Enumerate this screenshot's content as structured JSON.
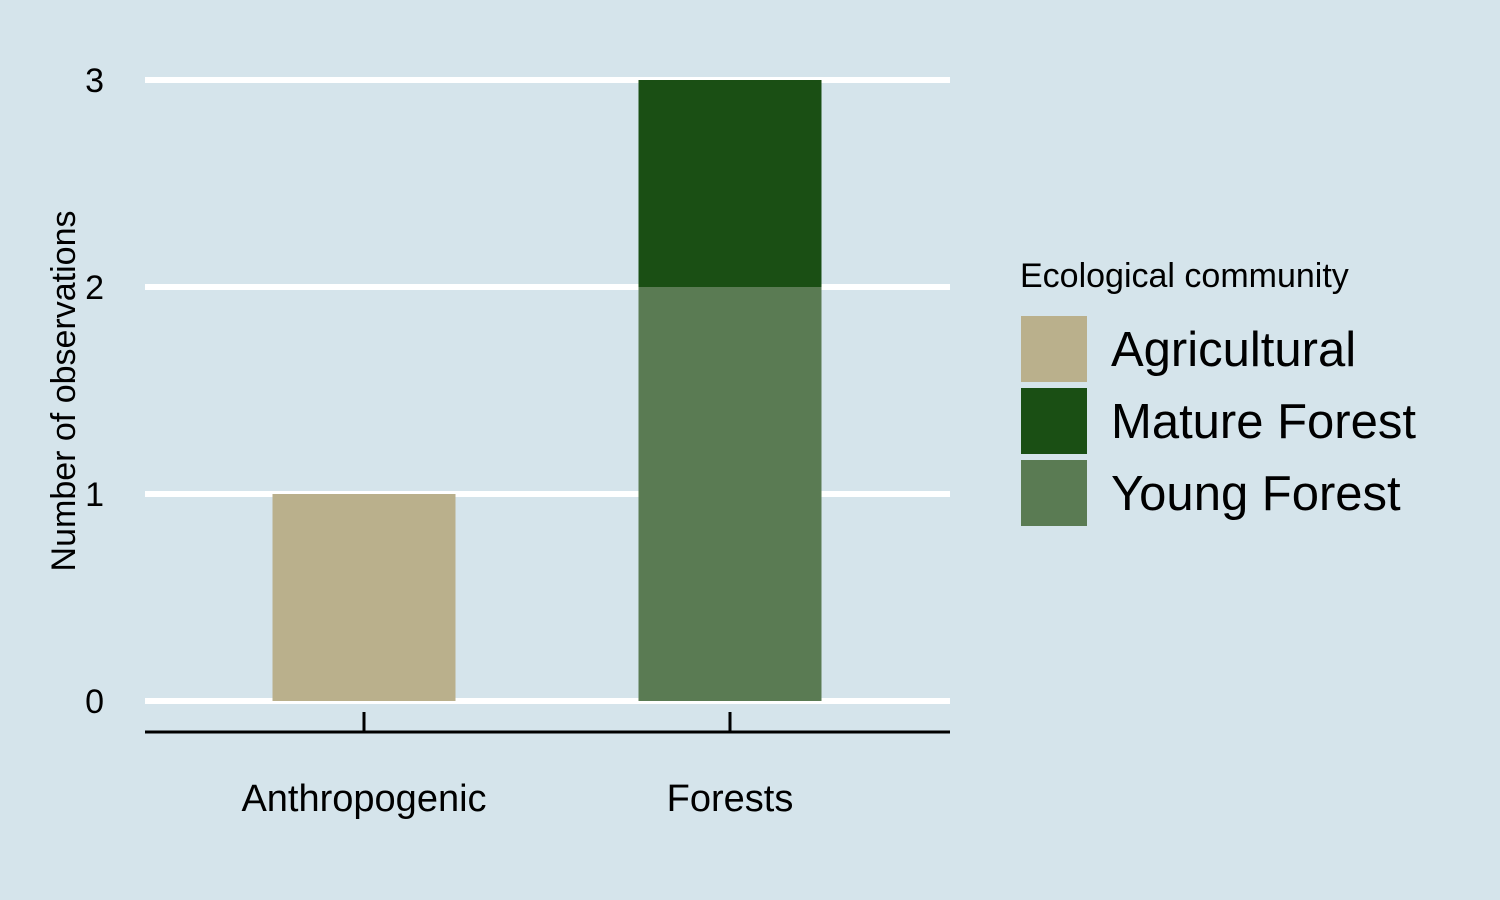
{
  "chart_data": {
    "type": "bar",
    "stacked": true,
    "categories": [
      "Anthropogenic",
      "Forests"
    ],
    "series": [
      {
        "name": "Agricultural",
        "values": [
          1,
          0
        ],
        "color": "#bab08c"
      },
      {
        "name": "Young Forest",
        "values": [
          0,
          2
        ],
        "color": "#5a7b53"
      },
      {
        "name": "Mature Forest",
        "values": [
          0,
          1
        ],
        "color": "#1a4f14"
      }
    ],
    "legend": {
      "title": "Ecological community",
      "placement": "right",
      "items": [
        {
          "label": "Agricultural",
          "color": "#bab08c"
        },
        {
          "label": "Mature Forest",
          "color": "#1a4f14"
        },
        {
          "label": "Young Forest",
          "color": "#5a7b53"
        }
      ]
    },
    "ylabel": "Number of observations",
    "xlabel": "",
    "title": "",
    "ylim": [
      0,
      3
    ],
    "yticks": [
      0,
      1,
      2,
      3
    ],
    "grid": "horizontal",
    "background_color": "#d5e4eb",
    "grid_color": "#ffffff"
  }
}
